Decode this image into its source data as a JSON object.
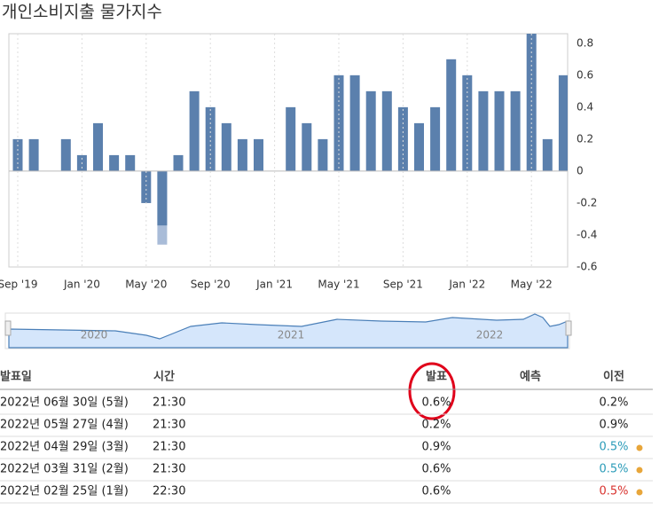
{
  "header": {
    "title": "개인소비지출 물가지수"
  },
  "chart_data": {
    "type": "bar",
    "categories": [
      "Sep '19",
      null,
      null,
      null,
      "Jan '20",
      null,
      null,
      null,
      "May '20",
      null,
      null,
      null,
      "Sep '20",
      null,
      null,
      null,
      "Jan '21",
      null,
      null,
      null,
      "May '21",
      null,
      null,
      null,
      "Sep '21",
      null,
      null,
      null,
      "Jan '22",
      null,
      null,
      null,
      "May '22",
      null,
      null
    ],
    "series": [
      {
        "color": "#a9bcd8",
        "values": [
          null,
          null,
          null,
          null,
          null,
          null,
          null,
          null,
          null,
          -0.46,
          null,
          null,
          null,
          null,
          null,
          null,
          null,
          null,
          null,
          null,
          null,
          null,
          null,
          null,
          null,
          null,
          null,
          null,
          null,
          null,
          null,
          null,
          null,
          null,
          null
        ]
      },
      {
        "color": "#5b80ad",
        "values": [
          0.2,
          0.2,
          null,
          0.2,
          0.1,
          0.3,
          0.1,
          0.1,
          -0.2,
          -0.34,
          0.1,
          0.5,
          0.4,
          0.3,
          0.2,
          0.2,
          null,
          0.4,
          0.3,
          0.2,
          0.6,
          0.6,
          0.5,
          0.5,
          0.4,
          0.3,
          0.4,
          0.7,
          0.6,
          0.5,
          0.5,
          0.5,
          0.9,
          0.2,
          0.6
        ]
      }
    ],
    "ylim": [
      -0.6,
      0.86
    ],
    "yticks": [
      0.8,
      0.6,
      0.4,
      0.2,
      0,
      -0.2,
      -0.4,
      -0.6
    ],
    "grid": true
  },
  "navigator": {
    "labels": [
      "2020",
      "2021",
      "2022"
    ]
  },
  "table": {
    "headers": [
      "발표일",
      "시간",
      "발표",
      "예측",
      "이전"
    ],
    "rows": [
      {
        "date": "2022년 06월 30일 (5월)",
        "time": "21:30",
        "actual": "0.6%",
        "previous": "0.2%",
        "prev_color": "#222222"
      },
      {
        "date": "2022년 05월 27일 (4월)",
        "time": "21:30",
        "actual": "0.2%",
        "previous": "0.9%",
        "prev_color": "#222222"
      },
      {
        "date": "2022년 04월 29일 (3월)",
        "time": "21:30",
        "actual": "0.9%",
        "previous": "0.5%",
        "prev_color": "#2a9bb8",
        "dot": true
      },
      {
        "date": "2022년 03월 31일 (2월)",
        "time": "21:30",
        "actual": "0.6%",
        "previous": "0.5%",
        "prev_color": "#2a9bb8",
        "dot": true
      },
      {
        "date": "2022년 02월 25일 (1월)",
        "time": "22:30",
        "actual": "0.6%",
        "previous": "0.5%",
        "prev_color": "#d8322e",
        "dot": true
      }
    ]
  }
}
